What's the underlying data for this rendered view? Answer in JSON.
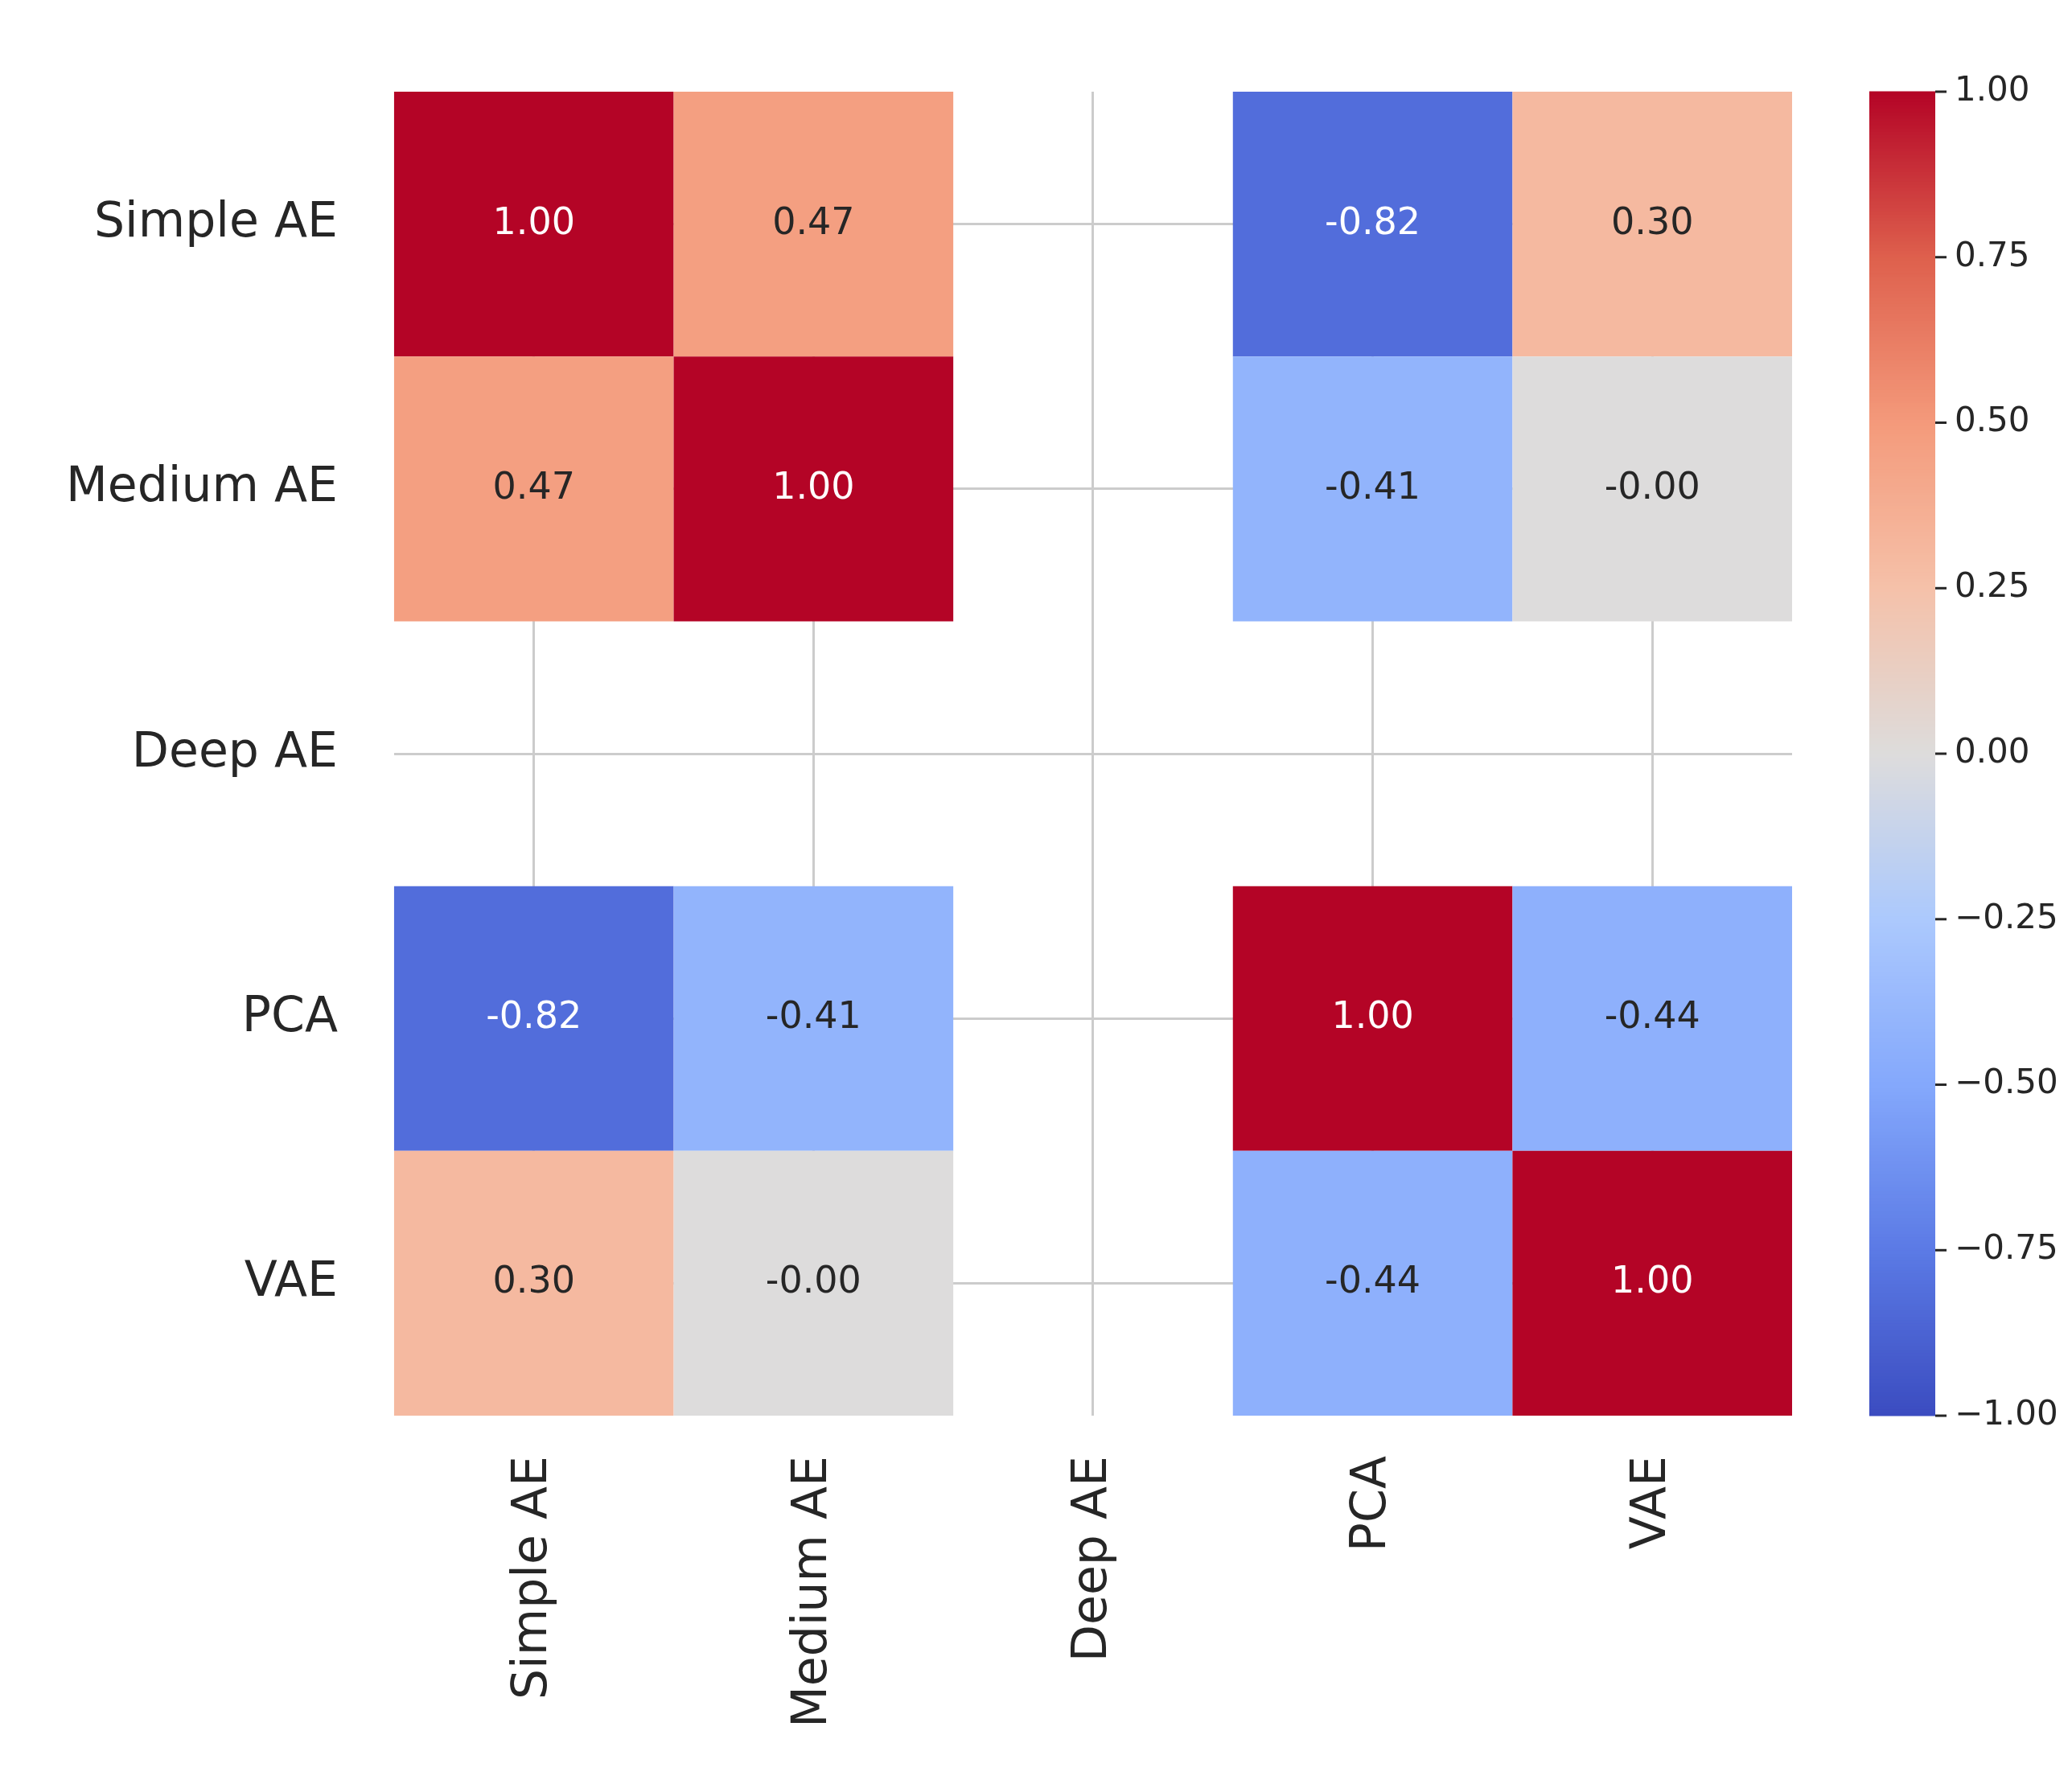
{
  "chart_data": {
    "type": "heatmap",
    "categories": [
      "Simple AE",
      "Medium AE",
      "Deep AE",
      "PCA",
      "VAE"
    ],
    "y_categories": [
      "Simple AE",
      "Medium AE",
      "Deep AE",
      "PCA",
      "VAE"
    ],
    "cells": [
      [
        1.0,
        0.47,
        null,
        -0.82,
        0.3
      ],
      [
        0.47,
        1.0,
        null,
        -0.41,
        0.0
      ],
      [
        null,
        null,
        null,
        null,
        null
      ],
      [
        -0.82,
        -0.41,
        null,
        1.0,
        -0.44
      ],
      [
        0.3,
        0.0,
        null,
        -0.44,
        1.0
      ]
    ],
    "cell_labels": [
      [
        "1.00",
        "0.47",
        null,
        "-0.82",
        "0.30"
      ],
      [
        "0.47",
        "1.00",
        null,
        "-0.41",
        "-0.00"
      ],
      [
        null,
        null,
        null,
        null,
        null
      ],
      [
        "-0.82",
        "-0.41",
        null,
        "1.00",
        "-0.44"
      ],
      [
        "0.30",
        "-0.00",
        null,
        "-0.44",
        "1.00"
      ]
    ],
    "clim": [
      -1,
      1
    ],
    "cticks": [
      {
        "value": -1,
        "label": "−1.00"
      },
      {
        "value": -0.75,
        "label": "−0.75"
      },
      {
        "value": -0.5,
        "label": "−0.50"
      },
      {
        "value": -0.25,
        "label": "−0.25"
      },
      {
        "value": 0,
        "label": "0.00"
      },
      {
        "value": 0.25,
        "label": "0.25"
      },
      {
        "value": 0.5,
        "label": "0.50"
      },
      {
        "value": 0.75,
        "label": "0.75"
      },
      {
        "value": 1,
        "label": "1.00"
      }
    ],
    "grid": true
  }
}
